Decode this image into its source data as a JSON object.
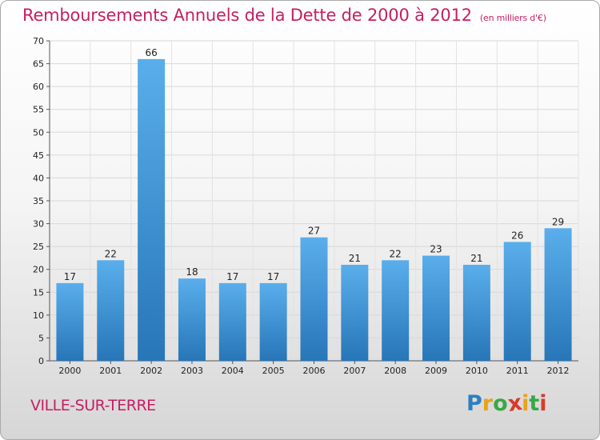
{
  "chart_data": {
    "type": "bar",
    "title": "Remboursements Annuels de la Dette de 2000 à 2012",
    "subtitle": "(en milliers d'€)",
    "categories": [
      "2000",
      "2001",
      "2002",
      "2003",
      "2004",
      "2005",
      "2006",
      "2007",
      "2008",
      "2009",
      "2010",
      "2011",
      "2012"
    ],
    "values": [
      17,
      22,
      66,
      18,
      17,
      17,
      27,
      21,
      22,
      23,
      21,
      26,
      29
    ],
    "ylim": [
      0,
      70
    ],
    "yticks": [
      0,
      5,
      10,
      15,
      20,
      25,
      30,
      35,
      40,
      45,
      50,
      55,
      60,
      65,
      70
    ],
    "grid": true,
    "bar_color": "#4a9fe0",
    "bar_color_dark": "#2a7cc0"
  },
  "commune": "VILLE-SUR-TERRE",
  "logo": {
    "letters": [
      "P",
      "r",
      "o",
      "x",
      "i",
      "t",
      "i"
    ],
    "colors": [
      "#2d7fc1",
      "#e8a21c",
      "#3aa845",
      "#d93a2b",
      "#e8a21c",
      "#3aa845",
      "#d93a2b"
    ]
  }
}
